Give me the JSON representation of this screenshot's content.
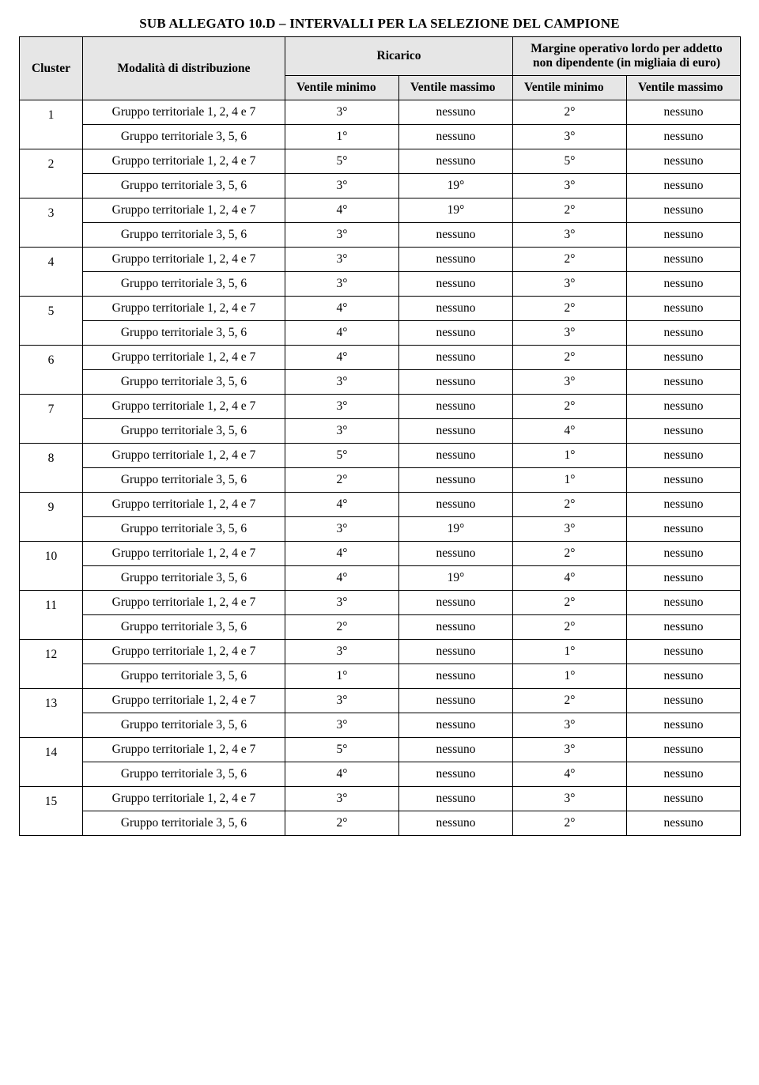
{
  "title": "SUB ALLEGATO 10.D – INTERVALLI PER LA SELEZIONE DEL CAMPIONE",
  "columns": {
    "cluster": "Cluster",
    "modal": "Modalità di distribuzione",
    "group_ricarico": "Ricarico",
    "group_margine": "Margine operativo lordo per addetto non dipendente (in migliaia di euro)",
    "ventile_min": "Ventile minimo",
    "ventile_max": "Ventile massimo"
  },
  "modal_labels": {
    "a": "Gruppo territoriale 1, 2, 4 e 7",
    "b": "Gruppo territoriale 3, 5, 6"
  },
  "clusters": [
    {
      "id": "1",
      "rows": [
        {
          "m": "a",
          "r_min": "3°",
          "r_max": "nessuno",
          "m_min": "2°",
          "m_max": "nessuno"
        },
        {
          "m": "b",
          "r_min": "1°",
          "r_max": "nessuno",
          "m_min": "3°",
          "m_max": "nessuno"
        }
      ]
    },
    {
      "id": "2",
      "rows": [
        {
          "m": "a",
          "r_min": "5°",
          "r_max": "nessuno",
          "m_min": "5°",
          "m_max": "nessuno"
        },
        {
          "m": "b",
          "r_min": "3°",
          "r_max": "19°",
          "m_min": "3°",
          "m_max": "nessuno"
        }
      ]
    },
    {
      "id": "3",
      "rows": [
        {
          "m": "a",
          "r_min": "4°",
          "r_max": "19°",
          "m_min": "2°",
          "m_max": "nessuno"
        },
        {
          "m": "b",
          "r_min": "3°",
          "r_max": "nessuno",
          "m_min": "3°",
          "m_max": "nessuno"
        }
      ]
    },
    {
      "id": "4",
      "rows": [
        {
          "m": "a",
          "r_min": "3°",
          "r_max": "nessuno",
          "m_min": "2°",
          "m_max": "nessuno"
        },
        {
          "m": "b",
          "r_min": "3°",
          "r_max": "nessuno",
          "m_min": "3°",
          "m_max": "nessuno"
        }
      ]
    },
    {
      "id": "5",
      "rows": [
        {
          "m": "a",
          "r_min": "4°",
          "r_max": "nessuno",
          "m_min": "2°",
          "m_max": "nessuno"
        },
        {
          "m": "b",
          "r_min": "4°",
          "r_max": "nessuno",
          "m_min": "3°",
          "m_max": "nessuno"
        }
      ]
    },
    {
      "id": "6",
      "rows": [
        {
          "m": "a",
          "r_min": "4°",
          "r_max": "nessuno",
          "m_min": "2°",
          "m_max": "nessuno"
        },
        {
          "m": "b",
          "r_min": "3°",
          "r_max": "nessuno",
          "m_min": "3°",
          "m_max": "nessuno"
        }
      ]
    },
    {
      "id": "7",
      "rows": [
        {
          "m": "a",
          "r_min": "3°",
          "r_max": "nessuno",
          "m_min": "2°",
          "m_max": "nessuno"
        },
        {
          "m": "b",
          "r_min": "3°",
          "r_max": "nessuno",
          "m_min": "4°",
          "m_max": "nessuno"
        }
      ]
    },
    {
      "id": "8",
      "rows": [
        {
          "m": "a",
          "r_min": "5°",
          "r_max": "nessuno",
          "m_min": "1°",
          "m_max": "nessuno"
        },
        {
          "m": "b",
          "r_min": "2°",
          "r_max": "nessuno",
          "m_min": "1°",
          "m_max": "nessuno"
        }
      ]
    },
    {
      "id": "9",
      "rows": [
        {
          "m": "a",
          "r_min": "4°",
          "r_max": "nessuno",
          "m_min": "2°",
          "m_max": "nessuno"
        },
        {
          "m": "b",
          "r_min": "3°",
          "r_max": "19°",
          "m_min": "3°",
          "m_max": "nessuno"
        }
      ]
    },
    {
      "id": "10",
      "rows": [
        {
          "m": "a",
          "r_min": "4°",
          "r_max": "nessuno",
          "m_min": "2°",
          "m_max": "nessuno"
        },
        {
          "m": "b",
          "r_min": "4°",
          "r_max": "19°",
          "m_min": "4°",
          "m_max": "nessuno"
        }
      ]
    },
    {
      "id": "11",
      "rows": [
        {
          "m": "a",
          "r_min": "3°",
          "r_max": "nessuno",
          "m_min": "2°",
          "m_max": "nessuno"
        },
        {
          "m": "b",
          "r_min": "2°",
          "r_max": "nessuno",
          "m_min": "2°",
          "m_max": "nessuno"
        }
      ]
    },
    {
      "id": "12",
      "rows": [
        {
          "m": "a",
          "r_min": "3°",
          "r_max": "nessuno",
          "m_min": "1°",
          "m_max": "nessuno"
        },
        {
          "m": "b",
          "r_min": "1°",
          "r_max": "nessuno",
          "m_min": "1°",
          "m_max": "nessuno"
        }
      ]
    },
    {
      "id": "13",
      "rows": [
        {
          "m": "a",
          "r_min": "3°",
          "r_max": "nessuno",
          "m_min": "2°",
          "m_max": "nessuno"
        },
        {
          "m": "b",
          "r_min": "3°",
          "r_max": "nessuno",
          "m_min": "3°",
          "m_max": "nessuno"
        }
      ]
    },
    {
      "id": "14",
      "rows": [
        {
          "m": "a",
          "r_min": "5°",
          "r_max": "nessuno",
          "m_min": "3°",
          "m_max": "nessuno"
        },
        {
          "m": "b",
          "r_min": "4°",
          "r_max": "nessuno",
          "m_min": "4°",
          "m_max": "nessuno"
        }
      ]
    },
    {
      "id": "15",
      "rows": [
        {
          "m": "a",
          "r_min": "3°",
          "r_max": "nessuno",
          "m_min": "3°",
          "m_max": "nessuno"
        },
        {
          "m": "b",
          "r_min": "2°",
          "r_max": "nessuno",
          "m_min": "2°",
          "m_max": "nessuno"
        }
      ]
    }
  ]
}
